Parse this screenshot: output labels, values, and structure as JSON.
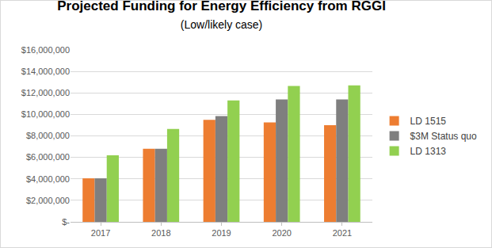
{
  "chart_data": {
    "type": "bar",
    "title": "Projected Funding for Energy Efficiency from RGGI",
    "subtitle": "(Low/likely case)",
    "categories": [
      "2017",
      "2018",
      "2019",
      "2020",
      "2021"
    ],
    "series": [
      {
        "name": "LD 1515",
        "color": "#ED7D31",
        "values": [
          4050000,
          6800000,
          9500000,
          9250000,
          9000000
        ]
      },
      {
        "name": "$3M Status quo",
        "color": "#7F7F7F",
        "values": [
          4050000,
          6800000,
          9850000,
          11400000,
          11400000
        ]
      },
      {
        "name": "LD 1313",
        "color": "#92D050",
        "values": [
          6200000,
          8650000,
          11300000,
          12650000,
          12700000
        ]
      }
    ],
    "ylim": [
      0,
      16000000
    ],
    "yticks": [
      {
        "value": 0,
        "label": "$-"
      },
      {
        "value": 2000000,
        "label": "$2,000,000"
      },
      {
        "value": 4000000,
        "label": "$4,000,000"
      },
      {
        "value": 6000000,
        "label": "$6,000,000"
      },
      {
        "value": 8000000,
        "label": "$8,000,000"
      },
      {
        "value": 10000000,
        "label": "$10,000,000"
      },
      {
        "value": 12000000,
        "label": "$12,000,000"
      },
      {
        "value": 14000000,
        "label": "$14,000,000"
      },
      {
        "value": 16000000,
        "label": "$16,000,000"
      }
    ],
    "grid": true,
    "legend": "right"
  }
}
